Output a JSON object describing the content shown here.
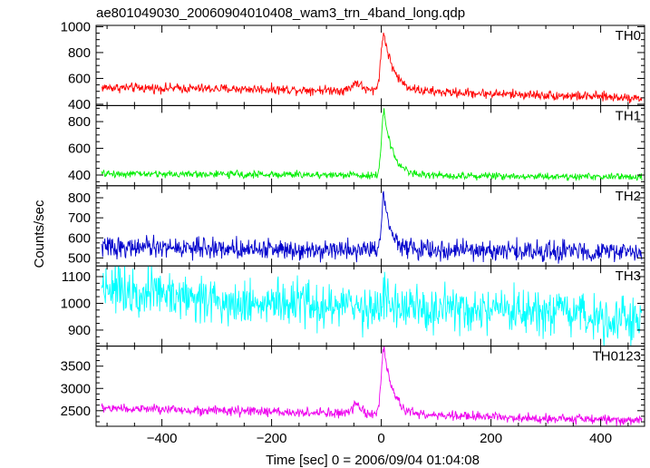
{
  "chart_data": {
    "type": "line",
    "title": "ae801049030_20060904010408_wam3_trn_4band_long.qdp",
    "xlabel": "Time [sec] 0 = 2006/09/04 01:04:08",
    "ylabel": "Counts/sec",
    "xlim": [
      -520,
      480
    ],
    "x_ticks": [
      -400,
      -200,
      0,
      200,
      400
    ],
    "x_tick_labels": [
      "−400",
      "−200",
      "0",
      "200",
      "400"
    ],
    "grid": false,
    "x_sample_start": -510,
    "x_sample_end": 475,
    "x_sample_step": 1,
    "peak_time": 5,
    "series": [
      {
        "name": "TH0",
        "color": "#ff0000",
        "ylim": [
          390,
          1010
        ],
        "y_ticks": [
          400,
          600,
          800,
          1000
        ],
        "y_tick_labels": [
          "400",
          "600",
          "800",
          "1000"
        ],
        "trend": [
          [
            -510,
            530
          ],
          [
            -200,
            515
          ],
          [
            0,
            505
          ],
          [
            475,
            450
          ]
        ],
        "noise_amplitude": 55,
        "bumps": [
          {
            "t": -45,
            "height": 60,
            "width": 12
          }
        ],
        "peak": {
          "t": 5,
          "height": 440,
          "rise": 8,
          "decay": 18
        }
      },
      {
        "name": "TH1",
        "color": "#00ee00",
        "ylim": [
          320,
          920
        ],
        "y_ticks": [
          400,
          600,
          800
        ],
        "y_tick_labels": [
          "400",
          "600",
          "800"
        ],
        "trend": [
          [
            -510,
            410
          ],
          [
            0,
            400
          ],
          [
            475,
            385
          ]
        ],
        "noise_amplitude": 40,
        "bumps": [],
        "peak": {
          "t": 5,
          "height": 480,
          "rise": 6,
          "decay": 16
        }
      },
      {
        "name": "TH2",
        "color": "#0000cc",
        "ylim": [
          460,
          860
        ],
        "y_ticks": [
          500,
          600,
          700,
          800
        ],
        "y_tick_labels": [
          "500",
          "600",
          "700",
          "800"
        ],
        "trend": [
          [
            -510,
            555
          ],
          [
            -200,
            545
          ],
          [
            475,
            530
          ]
        ],
        "noise_amplitude": 75,
        "bumps": [],
        "peak": {
          "t": 5,
          "height": 270,
          "rise": 6,
          "decay": 14
        }
      },
      {
        "name": "TH3",
        "color": "#00ffff",
        "ylim": [
          840,
          1140
        ],
        "y_ticks": [
          900,
          1000,
          1100
        ],
        "y_tick_labels": [
          "900",
          "1000",
          "1100"
        ],
        "trend": [
          [
            -510,
            1070
          ],
          [
            -300,
            1010
          ],
          [
            0,
            980
          ],
          [
            475,
            945
          ]
        ],
        "noise_amplitude": 130,
        "bumps": [],
        "peak": {
          "t": 5,
          "height": 60,
          "rise": 6,
          "decay": 12
        }
      },
      {
        "name": "TH0123",
        "color": "#ee00ee",
        "ylim": [
          2150,
          3950
        ],
        "y_ticks": [
          2500,
          3000,
          3500
        ],
        "y_tick_labels": [
          "2500",
          "3000",
          "3500"
        ],
        "trend": [
          [
            -510,
            2560
          ],
          [
            -200,
            2470
          ],
          [
            0,
            2420
          ],
          [
            475,
            2280
          ]
        ],
        "noise_amplitude": 160,
        "bumps": [
          {
            "t": -45,
            "height": 170,
            "width": 12
          }
        ],
        "peak": {
          "t": 5,
          "height": 1450,
          "rise": 7,
          "decay": 16
        }
      }
    ]
  }
}
